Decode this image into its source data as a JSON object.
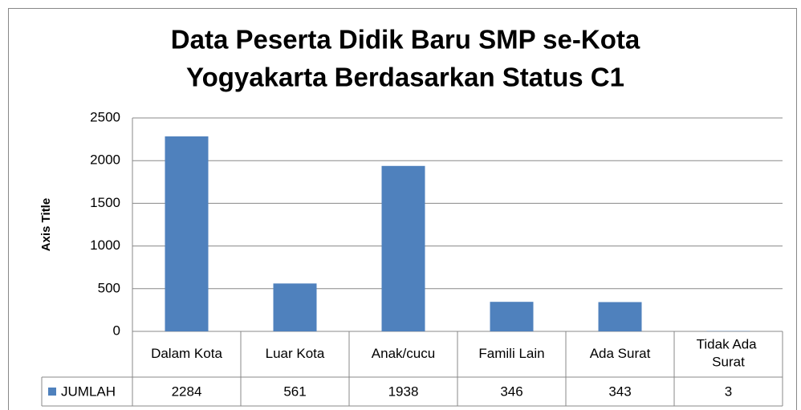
{
  "chart_data": {
    "type": "bar",
    "title": [
      "Data Peserta Didik Baru SMP se-Kota",
      "Yogyakarta  Berdasarkan Status C1"
    ],
    "y_axis_label": "Axis Title",
    "categories": [
      "Dalam Kota",
      "Luar Kota",
      "Anak/cucu",
      "Famili Lain",
      "Ada Surat",
      "Tidak Ada Surat"
    ],
    "series": [
      {
        "name": "JUMLAH",
        "color": "#4f81bd",
        "values": [
          2284,
          561,
          1938,
          346,
          343,
          3
        ]
      }
    ],
    "ylim": [
      0,
      2500
    ],
    "yticks": [
      0,
      500,
      1000,
      1500,
      2000,
      2500
    ],
    "grid": true
  }
}
